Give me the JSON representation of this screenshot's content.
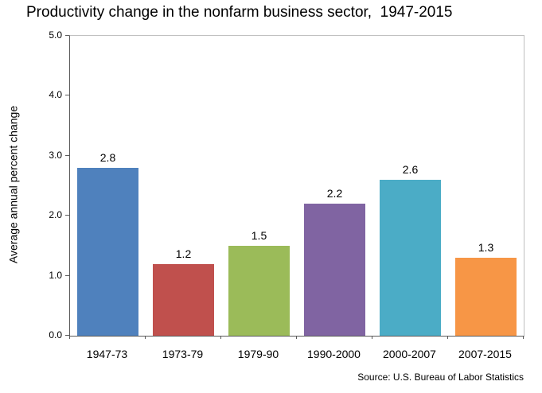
{
  "chart_data": {
    "type": "bar",
    "title": "Productivity change in the nonfarm business sector,  1947-2015",
    "ylabel": "Average annual percent change",
    "xlabel": "",
    "categories": [
      "1947-73",
      "1973-79",
      "1979-90",
      "1990-2000",
      "2000-2007",
      "2007-2015"
    ],
    "values": [
      2.8,
      1.2,
      1.5,
      2.2,
      2.6,
      1.3
    ],
    "data_labels": [
      "2.8",
      "1.2",
      "1.5",
      "2.2",
      "2.6",
      "1.3"
    ],
    "bar_colors": [
      "#4F81BD",
      "#C0504D",
      "#9BBB59",
      "#8064A2",
      "#4BACC6",
      "#F79646"
    ],
    "ylim": [
      0,
      5
    ],
    "ytick_labels": [
      "0.0",
      "1.0",
      "2.0",
      "3.0",
      "4.0",
      "5.0"
    ],
    "ytick_values": [
      0,
      1,
      2,
      3,
      4,
      5
    ],
    "grid": false,
    "legend": false,
    "source": "Source: U.S. Bureau of Labor Statistics"
  },
  "colors": {
    "axis": "#595959",
    "plot_border": "#bfbfbf",
    "background": "#ffffff",
    "text": "#000000"
  }
}
